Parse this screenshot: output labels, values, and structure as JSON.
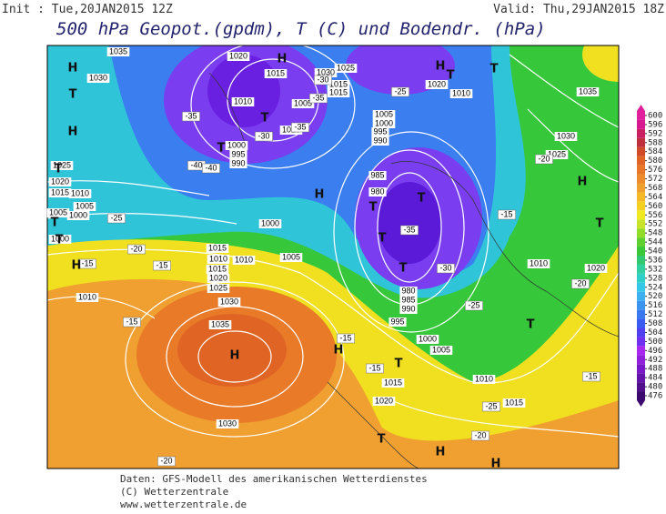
{
  "header": {
    "init": "Init : Tue,20JAN2015 12Z",
    "valid": "Valid: Thu,29JAN2015 18Z",
    "title": "500 hPa Geopot.(gpdm), T (C) und Bodendr. (hPa)"
  },
  "map": {
    "pressure_labels": [
      "1035",
      "1030",
      "1020",
      "1015",
      "1030",
      "1025",
      "1015",
      "1015",
      "1020",
      "1010",
      "1035",
      "1010",
      "1005",
      "1005",
      "1000",
      "995",
      "990",
      "1020",
      "1030",
      "1025",
      "1025",
      "1020",
      "1015",
      "1010",
      "1005",
      "1000",
      "1005",
      "1000",
      "1000",
      "985",
      "980",
      "1015",
      "1010",
      "1010",
      "1005",
      "1015",
      "1020",
      "1025",
      "1010",
      "1030",
      "1035",
      "980",
      "985",
      "990",
      "995",
      "1000",
      "1005",
      "1010",
      "1015",
      "1010",
      "1020",
      "1015",
      "1020",
      "1030",
      "1000",
      "995",
      "990"
    ],
    "temperature_labels": [
      "-35",
      "-30",
      "-25",
      "-40",
      "-30",
      "-35",
      "-35",
      "-30",
      "-25",
      "-20",
      "-15",
      "-25",
      "-20",
      "-15",
      "-15",
      "-20",
      "-20",
      "-15",
      "-15",
      "-20",
      "-15",
      "-25",
      "-35",
      "-40",
      "-15"
    ],
    "symbols": [
      "H",
      "T",
      "H",
      "T",
      "T",
      "T",
      "H",
      "H",
      "T",
      "T",
      "T",
      "T",
      "T",
      "H",
      "T",
      "T",
      "T",
      "H",
      "T",
      "H",
      "H",
      "T",
      "T",
      "H",
      "H",
      "T",
      "H"
    ]
  },
  "colorbar": {
    "ticks": [
      476,
      480,
      484,
      488,
      492,
      496,
      500,
      504,
      508,
      512,
      516,
      520,
      524,
      528,
      532,
      536,
      540,
      544,
      548,
      552,
      556,
      560,
      564,
      568,
      572,
      576,
      580,
      584,
      588,
      592,
      596,
      600
    ],
    "colors": [
      "#3c0a6e",
      "#50108c",
      "#6414aa",
      "#7818c8",
      "#9020dc",
      "#a828f0",
      "#7030f0",
      "#5040f0",
      "#3a5cf0",
      "#3a78f0",
      "#3a94f0",
      "#3cb0f0",
      "#36c8e8",
      "#30d0c8",
      "#30d0a0",
      "#30c870",
      "#38c838",
      "#60d030",
      "#90dc28",
      "#c8e428",
      "#f0e820",
      "#f4d020",
      "#f4b828",
      "#f0a030",
      "#ec8c2c",
      "#e87828",
      "#e06424",
      "#d04c28",
      "#c0303c",
      "#c82060",
      "#d81890",
      "#e0209c"
    ]
  },
  "footer": {
    "line1": "Daten: GFS-Modell des amerikanischen Wetterdienstes",
    "line2": "(C) Wetterzentrale",
    "line3": "www.wetterzentrale.de"
  }
}
